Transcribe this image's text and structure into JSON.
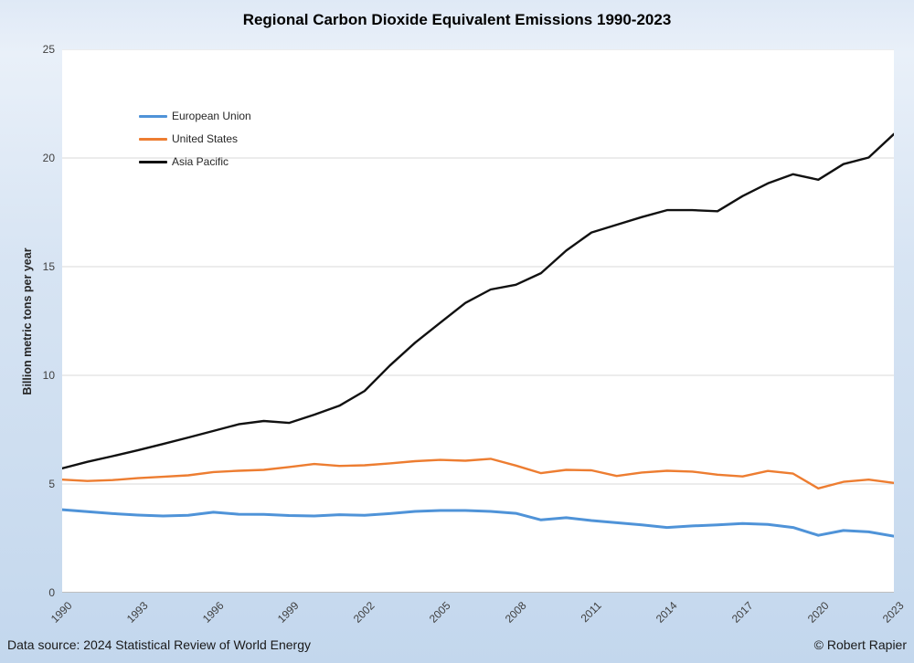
{
  "title": "Regional Carbon Dioxide Equivalent Emissions 1990-2023",
  "footer": {
    "source": "Data source: 2024 Statistical Review of World Energy",
    "credit": "© Robert Rapier"
  },
  "colors": {
    "plot_background": "#ffffff",
    "page_background_top": "#e9f0f9",
    "page_background_bottom": "#c3d7ed",
    "gridline": "#d9d9d9",
    "axis_line": "#bfbfbf",
    "tick_text": "#404040",
    "eu_line": "#4f93d8",
    "us_line": "#ed7d31",
    "ap_line": "#111111"
  },
  "chart_data": {
    "type": "line",
    "title": "Regional Carbon Dioxide Equivalent Emissions 1990-2023",
    "xlabel": "",
    "ylabel": "Billion metric tons per year",
    "ylim": [
      0,
      25
    ],
    "ytick_interval": 5,
    "yticks": [
      0,
      5,
      10,
      15,
      20,
      25
    ],
    "xticks": [
      1990,
      1993,
      1996,
      1999,
      2002,
      2005,
      2008,
      2011,
      2014,
      2017,
      2020,
      2023
    ],
    "grid": "horizontal",
    "legend_position": "top-left-inside",
    "x": [
      1990,
      1991,
      1992,
      1993,
      1994,
      1995,
      1996,
      1997,
      1998,
      1999,
      2000,
      2001,
      2002,
      2003,
      2004,
      2005,
      2006,
      2007,
      2008,
      2009,
      2010,
      2011,
      2012,
      2013,
      2014,
      2015,
      2016,
      2017,
      2018,
      2019,
      2020,
      2021,
      2022,
      2023
    ],
    "series": [
      {
        "name": "European Union",
        "color": "#4f93d8",
        "stroke_width": 3,
        "values": [
          3.82,
          3.73,
          3.64,
          3.57,
          3.53,
          3.56,
          3.7,
          3.61,
          3.6,
          3.55,
          3.53,
          3.59,
          3.56,
          3.64,
          3.74,
          3.78,
          3.78,
          3.74,
          3.65,
          3.35,
          3.45,
          3.32,
          3.22,
          3.12,
          3.0,
          3.07,
          3.12,
          3.18,
          3.14,
          3.0,
          2.64,
          2.86,
          2.8,
          2.6
        ]
      },
      {
        "name": "United States",
        "color": "#ed7d31",
        "stroke_width": 2.4,
        "values": [
          5.2,
          5.14,
          5.18,
          5.27,
          5.33,
          5.4,
          5.55,
          5.61,
          5.65,
          5.78,
          5.92,
          5.83,
          5.86,
          5.95,
          6.05,
          6.11,
          6.07,
          6.16,
          5.85,
          5.5,
          5.65,
          5.63,
          5.37,
          5.53,
          5.61,
          5.57,
          5.43,
          5.35,
          5.6,
          5.48,
          4.8,
          5.1,
          5.2,
          5.05
        ]
      },
      {
        "name": "Asia Pacific",
        "color": "#111111",
        "stroke_width": 2.4,
        "values": [
          5.72,
          6.02,
          6.28,
          6.55,
          6.84,
          7.14,
          7.44,
          7.75,
          7.9,
          7.81,
          8.19,
          8.6,
          9.28,
          10.45,
          11.5,
          12.42,
          13.33,
          13.95,
          14.17,
          14.7,
          15.74,
          16.57,
          16.93,
          17.28,
          17.6,
          17.6,
          17.55,
          18.25,
          18.83,
          19.25,
          19.0,
          19.72,
          20.02,
          21.1
        ]
      }
    ]
  }
}
